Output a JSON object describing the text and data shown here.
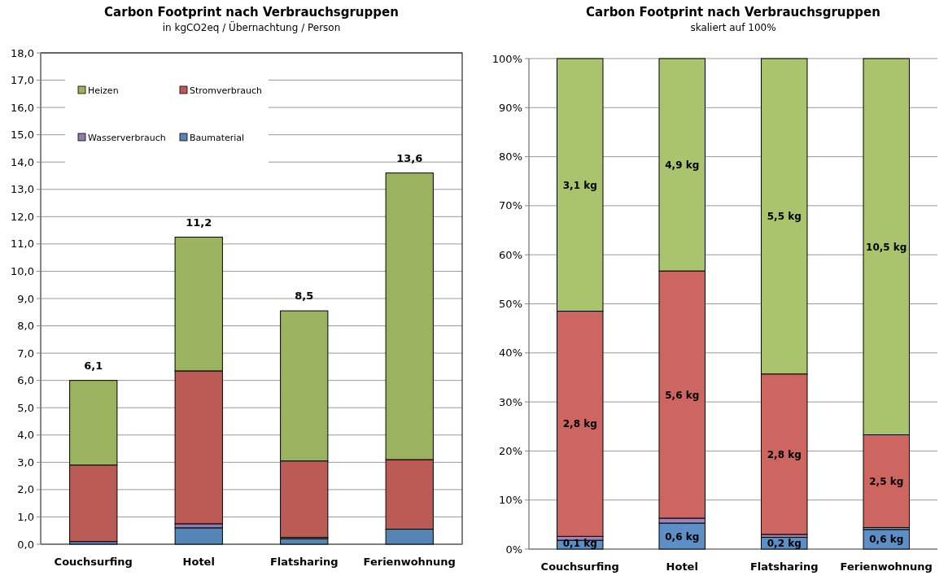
{
  "chart_data": [
    {
      "type": "bar",
      "title": "Carbon Footprint nach Verbrauchsgruppen",
      "subtitle": "in kgCO2eq / Übernachtung / Person",
      "categories": [
        "Couchsurfing",
        "Hotel",
        "Flatsharing",
        "Ferienwohnung"
      ],
      "stacked": true,
      "series": [
        {
          "name": "Baumaterial",
          "color": "#5585b5",
          "values": [
            0.1,
            0.6,
            0.2,
            0.55
          ]
        },
        {
          "name": "Wasserverbrauch",
          "color": "#8f7bb0",
          "values": [
            null,
            0.15,
            0.05,
            null
          ]
        },
        {
          "name": "Stromverbrauch",
          "color": "#bb5b55",
          "values": [
            2.8,
            5.6,
            2.8,
            2.55
          ]
        },
        {
          "name": "Heizen",
          "color": "#9bb35f",
          "values": [
            3.1,
            4.9,
            5.5,
            10.5
          ]
        }
      ],
      "totals": [
        "6,1",
        "11,2",
        "8,5",
        "13,6"
      ],
      "ylim": [
        0,
        18
      ],
      "yticks": [
        {
          "value": 0,
          "label": "0,0"
        },
        {
          "value": 1,
          "label": "1,0"
        },
        {
          "value": 2,
          "label": "2,0"
        },
        {
          "value": 3,
          "label": "3,0"
        },
        {
          "value": 4,
          "label": "4,0"
        },
        {
          "value": 5,
          "label": "5,0"
        },
        {
          "value": 6,
          "label": "6,0"
        },
        {
          "value": 7,
          "label": "7,0"
        },
        {
          "value": 8,
          "label": "8,0"
        },
        {
          "value": 9,
          "label": "9,0"
        },
        {
          "value": 10,
          "label": "10,0"
        },
        {
          "value": 11,
          "label": "11,0"
        },
        {
          "value": 12,
          "label": "12,0"
        },
        {
          "value": 13,
          "label": "13,0"
        },
        {
          "value": 14,
          "label": "14,0"
        },
        {
          "value": 15,
          "label": "15,0"
        },
        {
          "value": 16,
          "label": "16,0"
        },
        {
          "value": 17,
          "label": "17,0"
        },
        {
          "value": 18,
          "label": "18,0"
        }
      ],
      "grid": "y",
      "legend": "top left"
    },
    {
      "type": "bar",
      "title": "Carbon Footprint nach Verbrauchsgruppen",
      "subtitle": "skaliert auf 100%",
      "categories": [
        "Couchsurfing",
        "Hotel",
        "Flatsharing",
        "Ferienwohnung"
      ],
      "stacked": true,
      "series": [
        {
          "color": "#5b8fc6",
          "values": [
            1.8,
            5.3,
            2.4,
            4.0
          ]
        },
        {
          "color": "#9a84b8",
          "values": [
            0.8,
            1.0,
            0.6,
            0.4
          ]
        },
        {
          "color": "#cd6660",
          "values": [
            45.9,
            50.4,
            32.7,
            18.9
          ]
        },
        {
          "color": "#a9c46c",
          "values": [
            51.5,
            43.3,
            64.3,
            76.7
          ]
        }
      ],
      "annotations": [
        "0,1 kg",
        "0,6 kg",
        "0,2 kg",
        "0,6 kg",
        "2,8 kg",
        "5,6 kg",
        "2,8 kg",
        "2,5 kg",
        "3,1 kg",
        "4,9 kg",
        "5,5 kg",
        "10,5 kg"
      ],
      "ylim": [
        0,
        100
      ],
      "yticks": [
        {
          "value": 0,
          "label": "0%"
        },
        {
          "value": 10,
          "label": "10%"
        },
        {
          "value": 20,
          "label": "20%"
        },
        {
          "value": 30,
          "label": "30%"
        },
        {
          "value": 40,
          "label": "40%"
        },
        {
          "value": 50,
          "label": "50%"
        },
        {
          "value": 60,
          "label": "60%"
        },
        {
          "value": 70,
          "label": "70%"
        },
        {
          "value": 80,
          "label": "80%"
        },
        {
          "value": 90,
          "label": "90%"
        },
        {
          "value": 100,
          "label": "100%"
        }
      ],
      "grid": "y",
      "legend": false
    }
  ]
}
